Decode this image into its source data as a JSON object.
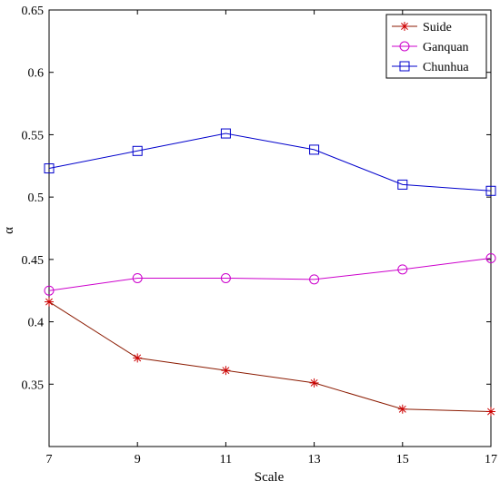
{
  "chart_data": {
    "type": "line",
    "title": "",
    "xlabel": "Scale",
    "ylabel": "α",
    "x": [
      7,
      9,
      11,
      13,
      15,
      17
    ],
    "xlim": [
      7,
      17
    ],
    "ylim": [
      0.3,
      0.65
    ],
    "xticks": [
      7,
      9,
      11,
      13,
      15,
      17
    ],
    "xtick_labels": [
      "7",
      "9",
      "11",
      "13",
      "15",
      "17"
    ],
    "yticks": [
      0.35,
      0.4,
      0.45,
      0.5,
      0.55,
      0.6,
      0.65
    ],
    "ytick_labels": [
      "0.35",
      "0.4",
      "0.45",
      "0.5",
      "0.55",
      "0.6",
      "0.65"
    ],
    "grid": false,
    "legend_position": "top-right",
    "series": [
      {
        "name": "Suide",
        "marker": "asterisk",
        "color": "#8b1a00",
        "marker_color": "#cc0000",
        "values": [
          0.416,
          0.371,
          0.361,
          0.351,
          0.33,
          0.328
        ]
      },
      {
        "name": "Ganquan",
        "marker": "circle",
        "color": "#cc00cc",
        "marker_color": "#cc00cc",
        "values": [
          0.425,
          0.435,
          0.435,
          0.434,
          0.442,
          0.451
        ]
      },
      {
        "name": "Chunhua",
        "marker": "square",
        "color": "#0000cc",
        "marker_color": "#0000cc",
        "values": [
          0.523,
          0.537,
          0.551,
          0.538,
          0.51,
          0.505
        ]
      }
    ]
  }
}
